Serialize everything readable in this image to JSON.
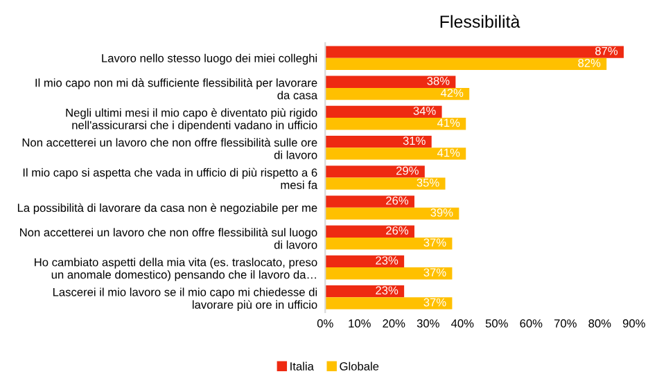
{
  "chart_data": {
    "type": "bar",
    "orientation": "horizontal",
    "title": "Flessibilità",
    "categories": [
      "Lavoro nello stesso luogo dei miei colleghi",
      "Il mio capo non mi dà sufficiente flessibilità per lavorare\nda casa",
      "Negli ultimi mesi il mio capo è diventato più rigido\nnell'assicurarsi che i dipendenti vadano in ufficio",
      "Non accetterei un lavoro che non offre flessibilità sulle ore\ndi lavoro",
      "Il mio capo si aspetta che vada in ufficio di più rispetto a 6\nmesi fa",
      "La possibilità di lavorare da casa non è negoziabile per me",
      "Non accetterei un lavoro che non offre flessibilità sul luogo\ndi lavoro",
      "Ho cambiato aspetti della mia vita (es. traslocato, preso\nun anomale domestico) pensando che il lavoro da…",
      "Lascerei il mio lavoro se il mio capo mi chiedesse di\nlavorare più ore in ufficio"
    ],
    "series": [
      {
        "name": "Italia",
        "color": "#ee2a12",
        "values": [
          87,
          38,
          34,
          31,
          29,
          26,
          26,
          23,
          23
        ],
        "value_labels": [
          "87%",
          "38%",
          "34%",
          "31%",
          "29%",
          "26%",
          "26%",
          "23%",
          "23%"
        ]
      },
      {
        "name": "Globale",
        "color": "#ffc000",
        "values": [
          82,
          42,
          41,
          41,
          35,
          39,
          37,
          37,
          37
        ],
        "value_labels": [
          "82%",
          "42%",
          "41%",
          "41%",
          "35%",
          "39%",
          "37%",
          "37%",
          "37%"
        ]
      }
    ],
    "xlim": [
      0,
      90
    ],
    "xticks": [
      {
        "value": 0,
        "label": "0%"
      },
      {
        "value": 10,
        "label": "10%"
      },
      {
        "value": 20,
        "label": "20%"
      },
      {
        "value": 30,
        "label": "30%"
      },
      {
        "value": 40,
        "label": "40%"
      },
      {
        "value": 50,
        "label": "50%"
      },
      {
        "value": 60,
        "label": "60%"
      },
      {
        "value": 70,
        "label": "70%"
      },
      {
        "value": 80,
        "label": "80%"
      },
      {
        "value": 90,
        "label": "90%"
      }
    ],
    "grid": false,
    "legend": "bottom"
  }
}
